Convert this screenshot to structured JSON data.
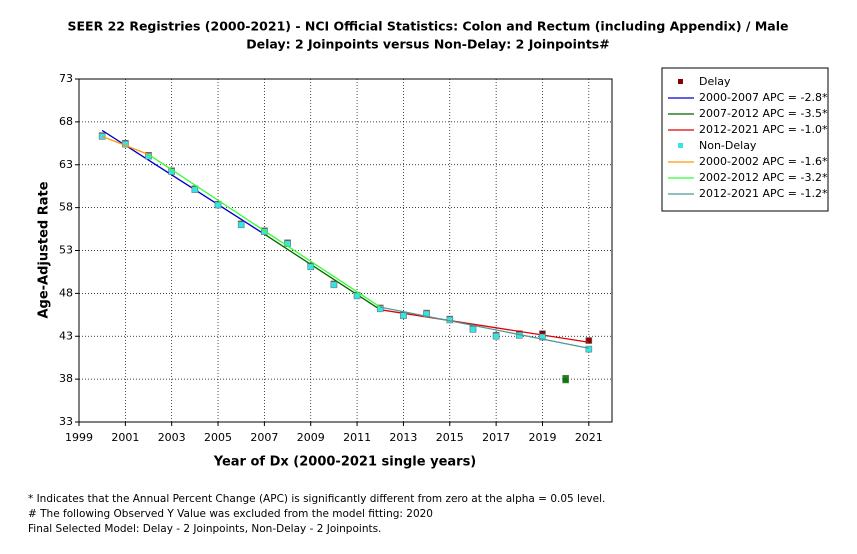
{
  "chart_data": {
    "type": "line",
    "title": "SEER 22 Registries (2000-2021) - NCI Official Statistics: Colon and Rectum (including Appendix) / Male",
    "subtitle": "Delay: 2 Joinpoints  versus  Non-Delay: 2 Joinpoints#",
    "x_label": "Year of Dx (2000-2021 single years)",
    "y_label": "Age-Adjusted Rate",
    "xlim": [
      1999,
      2022
    ],
    "xticks": [
      1999,
      2001,
      2003,
      2005,
      2007,
      2009,
      2011,
      2013,
      2015,
      2017,
      2019,
      2021
    ],
    "ylim": [
      33,
      73
    ],
    "yticks": [
      33,
      38,
      43,
      48,
      53,
      58,
      63,
      68,
      73
    ],
    "grid": true,
    "legend": "outside-right",
    "excluded_x": 2020,
    "excluded_color": "#008000",
    "series": [
      {
        "name": "Delay",
        "style": "points",
        "color": "#8b0000",
        "x": [
          2000,
          2001,
          2002,
          2003,
          2004,
          2005,
          2006,
          2007,
          2008,
          2009,
          2010,
          2011,
          2012,
          2013,
          2014,
          2015,
          2016,
          2017,
          2018,
          2019,
          2020,
          2021
        ],
        "values": [
          66.4,
          65.5,
          64.1,
          62.3,
          60.2,
          58.4,
          56.1,
          55.3,
          53.9,
          51.2,
          49.1,
          47.8,
          46.3,
          45.5,
          45.7,
          45.0,
          43.9,
          43.1,
          43.3,
          43.3,
          38.1,
          42.5
        ]
      },
      {
        "name": "2000-2007 APC  = -2.8*",
        "style": "line",
        "color": "#0000cc",
        "x": [
          2000,
          2007
        ],
        "values": [
          67.0,
          54.9
        ]
      },
      {
        "name": "2007-2012 APC  = -3.5*",
        "style": "line",
        "color": "#006400",
        "x": [
          2007,
          2012
        ],
        "values": [
          54.9,
          46.1
        ]
      },
      {
        "name": "2012-2021 APC  = -1.0*",
        "style": "line",
        "color": "#e00000",
        "x": [
          2012,
          2021
        ],
        "values": [
          46.1,
          42.3
        ]
      },
      {
        "name": "Non-Delay",
        "style": "points",
        "color": "#33e6e6",
        "x": [
          2000,
          2001,
          2002,
          2003,
          2004,
          2005,
          2006,
          2007,
          2008,
          2009,
          2010,
          2011,
          2012,
          2013,
          2014,
          2015,
          2016,
          2017,
          2018,
          2019,
          2020,
          2021
        ],
        "values": [
          66.3,
          65.4,
          64.0,
          62.2,
          60.1,
          58.3,
          56.0,
          55.2,
          53.8,
          51.1,
          49.0,
          47.7,
          46.2,
          45.4,
          45.6,
          44.9,
          43.8,
          43.0,
          43.1,
          42.9,
          37.9,
          41.5
        ]
      },
      {
        "name": "2000-2002 APC  = -1.6*",
        "style": "line",
        "color": "#ff9900",
        "x": [
          2000,
          2002
        ],
        "values": [
          66.3,
          64.2
        ]
      },
      {
        "name": "2002-2012 APC  = -3.2*",
        "style": "line",
        "color": "#33ff33",
        "x": [
          2002,
          2012
        ],
        "values": [
          64.2,
          46.4
        ]
      },
      {
        "name": "2012-2021 APC  = -1.2*",
        "style": "line",
        "color": "#4a9a9a",
        "x": [
          2012,
          2021
        ],
        "values": [
          46.4,
          41.6
        ]
      }
    ],
    "notes": [
      "* Indicates that the Annual Percent Change (APC) is significantly different from zero at the alpha = 0.05 level.",
      " # The following Observed Y Value was excluded from the model fitting: 2020",
      "Final Selected Model: Delay - 2 Joinpoints, Non-Delay - 2 Joinpoints."
    ]
  }
}
